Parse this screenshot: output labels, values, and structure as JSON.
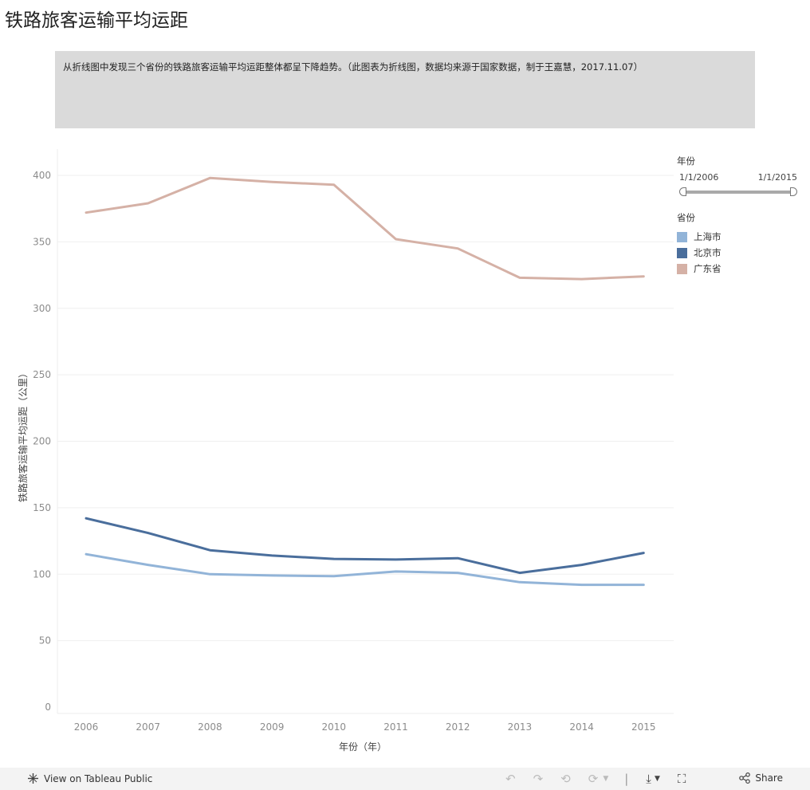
{
  "page": {
    "title": "铁路旅客运输平均运距",
    "description": "从折线图中发现三个省份的铁路旅客运输平均运距整体都呈下降趋势。（此图表为折线图，数据均来源于国家数据，制于王嘉慧，2017.11.07）"
  },
  "chart_data": {
    "type": "line",
    "x": [
      "2006",
      "2007",
      "2008",
      "2009",
      "2010",
      "2011",
      "2012",
      "2013",
      "2014",
      "2015"
    ],
    "xlabel": "年份（年）",
    "ylabel": "铁路旅客运输平均运距（公里）",
    "ylim": [
      0,
      400
    ],
    "yticks": [
      0,
      50,
      100,
      150,
      200,
      250,
      300,
      350,
      400
    ],
    "grid": true,
    "legend_position": "right",
    "series": [
      {
        "name": "上海市",
        "color": "#92b4d8",
        "values": [
          115,
          107,
          100,
          99,
          98.5,
          102,
          101,
          94,
          92,
          92
        ]
      },
      {
        "name": "北京市",
        "color": "#4a6e9c",
        "values": [
          142,
          131,
          118,
          114,
          111.5,
          111,
          112,
          101,
          107,
          116
        ]
      },
      {
        "name": "广东省",
        "color": "#d5b1a6",
        "values": [
          372,
          379,
          398,
          395,
          393,
          352,
          345,
          323,
          322,
          324
        ]
      }
    ]
  },
  "legend": {
    "year_filter_title": "年份",
    "range_start": "1/1/2006",
    "range_end": "1/1/2015",
    "province_title": "省份"
  },
  "footer": {
    "view_label": "View on Tableau Public",
    "share_label": "Share"
  }
}
